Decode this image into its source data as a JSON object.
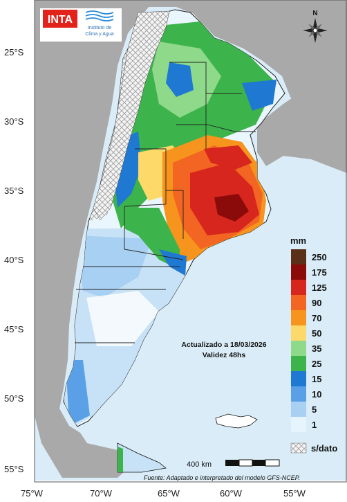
{
  "logo": {
    "brand": "INTA",
    "institute_line1": "Instituto de",
    "institute_line2": "Clima y Agua"
  },
  "compass": {
    "north": "N"
  },
  "axes": {
    "lat_labels": [
      "25°S",
      "30°S",
      "35°S",
      "40°S",
      "45°S",
      "50°S",
      "55°S"
    ],
    "lon_labels": [
      "75°W",
      "70°W",
      "65°W",
      "60°W",
      "55°W"
    ]
  },
  "legend": {
    "unit": "mm",
    "items": [
      {
        "label": "250",
        "color": "#5a3018"
      },
      {
        "label": "175",
        "color": "#8b0a0a"
      },
      {
        "label": "125",
        "color": "#d7261e"
      },
      {
        "label": "90",
        "color": "#f26522"
      },
      {
        "label": "70",
        "color": "#f7941d"
      },
      {
        "label": "50",
        "color": "#fdd96a"
      },
      {
        "label": "35",
        "color": "#8fd98a"
      },
      {
        "label": "25",
        "color": "#3cb44b"
      },
      {
        "label": "15",
        "color": "#1f78d1"
      },
      {
        "label": "10",
        "color": "#5aa0e6"
      },
      {
        "label": "5",
        "color": "#a8d0f2"
      },
      {
        "label": "1",
        "color": "#e6f4fd"
      }
    ],
    "nodata_label": "s/dato"
  },
  "update_note": {
    "line1": "Actualizado a 18/03/2026",
    "line2": "Validez 48hs"
  },
  "scale_bar": {
    "label": "400 km"
  },
  "source": "Fuente: Adaptado e interpretado del modelo GFS-NCEP."
}
